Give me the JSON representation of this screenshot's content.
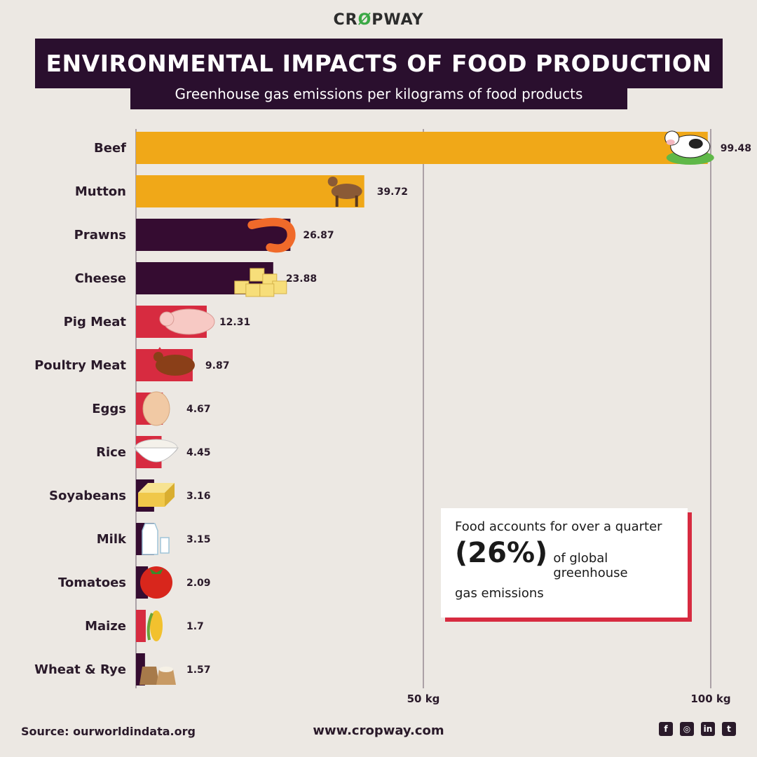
{
  "brand": {
    "name_part1": "CR",
    "name_leaf": "Ø",
    "name_part2": "PWAY"
  },
  "header": {
    "title": "ENVIRONMENTAL IMPACTS OF FOOD PRODUCTION",
    "subtitle": "Greenhouse gas emissions per kilograms of food products"
  },
  "chart_data": {
    "type": "bar",
    "orientation": "horizontal",
    "title": "Environmental impacts of food production",
    "subtitle": "Greenhouse gas emissions per kilograms of food products",
    "categories": [
      "Beef",
      "Mutton",
      "Prawns",
      "Cheese",
      "Pig Meat",
      "Poultry Meat",
      "Eggs",
      "Rice",
      "Soyabeans",
      "Milk",
      "Tomatoes",
      "Maize",
      "Wheat & Rye"
    ],
    "values": [
      99.48,
      39.72,
      26.87,
      23.88,
      12.31,
      9.87,
      4.67,
      4.45,
      3.16,
      3.15,
      2.09,
      1.7,
      1.57
    ],
    "value_labels": [
      "99.48",
      "39.72",
      "26.87",
      "23.88",
      "12.31",
      "9.87",
      "4.67",
      "4.45",
      "3.16",
      "3.15",
      "2.09",
      "1.7",
      "1.57"
    ],
    "bar_colors": [
      "#f0a818",
      "#f0a818",
      "#350c31",
      "#350c31",
      "#d72b40",
      "#d72b40",
      "#d72b40",
      "#d72b40",
      "#350c31",
      "#350c31",
      "#350c31",
      "#d72b40",
      "#350c31"
    ],
    "icons": [
      "cow-icon",
      "goat-icon",
      "prawn-icon",
      "cheese-icon",
      "pig-icon",
      "chicken-icon",
      "egg-icon",
      "rice-bowl-icon",
      "soy-block-icon",
      "milk-icon",
      "tomato-icon",
      "maize-icon",
      "wheat-sack-icon"
    ],
    "xlim": [
      0,
      100
    ],
    "xticks": [
      50,
      100
    ],
    "xtick_labels": [
      "50 kg",
      "100 kg"
    ],
    "grid": true
  },
  "note": {
    "line1": "Food accounts for over a quarter",
    "highlight": "(26%)",
    "line2_rest": "of global greenhouse",
    "line3": "gas emissions"
  },
  "footer": {
    "source": "Source: ourworldindata.org",
    "website": "www.cropway.com",
    "socials": [
      {
        "name": "facebook-icon",
        "glyph": "f"
      },
      {
        "name": "instagram-icon",
        "glyph": "◎"
      },
      {
        "name": "linkedin-icon",
        "glyph": "in"
      },
      {
        "name": "twitter-icon",
        "glyph": "t"
      }
    ]
  }
}
